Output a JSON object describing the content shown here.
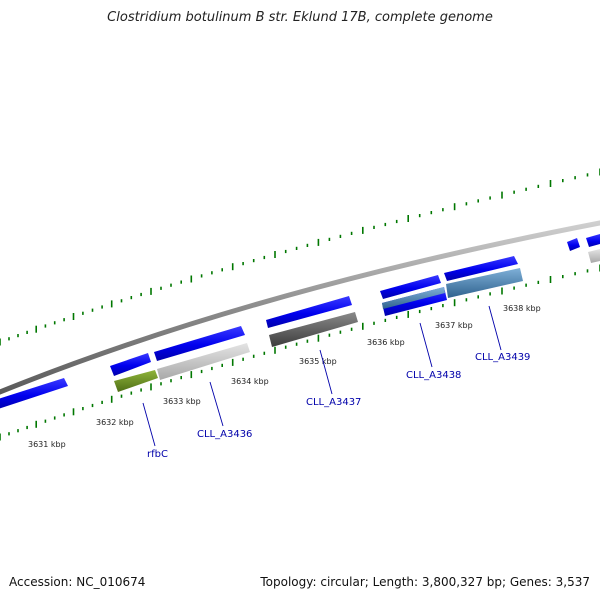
{
  "title": "Clostridium botulinum B str. Eklund 17B, complete genome",
  "accession": "Accession: NC_010674",
  "summary": "Topology: circular; Length: 3,800,327 bp; Genes: 3,537",
  "colors": {
    "backbone": "#8c8c8c",
    "cds_blue": "#0000ee",
    "ticks": "#007700",
    "rfbC_green": "#6b8e23",
    "light_grey": "#c8c8c8",
    "dark_grey": "#5a5a5a",
    "steel_blue": "#4682b4",
    "label_blue": "#0000aa"
  },
  "kbp_labels": [
    "3631 kbp",
    "3632 kbp",
    "3633 kbp",
    "3634 kbp",
    "3635 kbp",
    "3636 kbp",
    "3637 kbp",
    "3638 kbp"
  ],
  "gene_labels": [
    "rfbC",
    "CLL_A3436",
    "CLL_A3437",
    "CLL_A3438",
    "CLL_A3439"
  ]
}
